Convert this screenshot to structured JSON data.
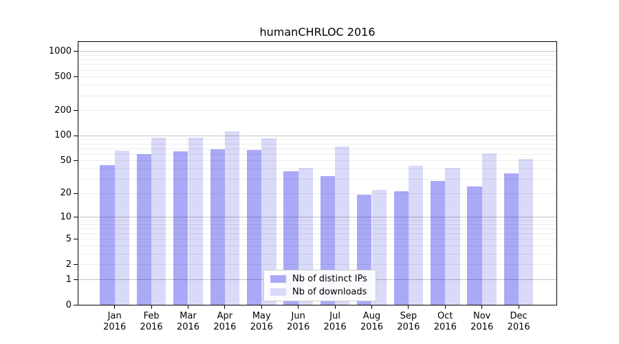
{
  "chart_data": {
    "type": "bar",
    "title": "humanCHRLOC 2016",
    "categories": [
      "Jan",
      "Feb",
      "Mar",
      "Apr",
      "May",
      "Jun",
      "Jul",
      "Aug",
      "Sep",
      "Oct",
      "Nov",
      "Dec"
    ],
    "x_year_label": "2016",
    "series": [
      {
        "name": "Nb of distinct IPs",
        "color": "#a9a9f7",
        "values": [
          44,
          60,
          64,
          68,
          67,
          37,
          32,
          19,
          21,
          28,
          24,
          35
        ]
      },
      {
        "name": "Nb of downloads",
        "color": "#d9d9f8",
        "values": [
          66,
          94,
          95,
          111,
          93,
          41,
          74,
          22,
          43,
          41,
          61,
          52
        ]
      }
    ],
    "yscale": "log1p",
    "ylim": [
      0,
      1285
    ],
    "yticks": [
      0,
      1,
      2,
      5,
      10,
      20,
      50,
      100,
      200,
      500,
      1000
    ],
    "major_gridlines": [
      1,
      10,
      100,
      1000
    ],
    "minor_gridlines": [
      2,
      3,
      4,
      5,
      6,
      7,
      8,
      9,
      20,
      30,
      40,
      50,
      60,
      70,
      80,
      90,
      200,
      300,
      400,
      500,
      600,
      700,
      800,
      900
    ],
    "grid": true,
    "legend_position": "lower center"
  }
}
